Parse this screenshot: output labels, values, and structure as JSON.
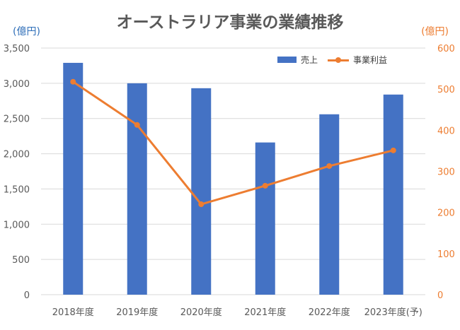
{
  "chart_data": {
    "type": "bar",
    "title": "オーストラリア事業の業績推移",
    "y_unit_left": "(億円)",
    "y_unit_right": "(億円)",
    "categories": [
      "2018年度",
      "2019年度",
      "2020年度",
      "2021年度",
      "2022年度",
      "2023年度(予)"
    ],
    "series": [
      {
        "name": "売上",
        "type": "bar",
        "axis": "left",
        "color": "#4472C4",
        "values": [
          3290,
          3000,
          2930,
          2160,
          2560,
          2840
        ]
      },
      {
        "name": "事業利益",
        "type": "line",
        "axis": "right",
        "color": "#ED7D31",
        "values": [
          518,
          413,
          220,
          265,
          313,
          351
        ]
      }
    ],
    "y_left": {
      "min": 0,
      "max": 3500,
      "step": 500,
      "ticks": [
        "0",
        "500",
        "1,000",
        "1,500",
        "2,000",
        "2,500",
        "3,000",
        "3,500"
      ]
    },
    "y_right": {
      "min": 0,
      "max": 600,
      "step": 100,
      "ticks": [
        "0",
        "100",
        "200",
        "300",
        "400",
        "500",
        "600"
      ]
    },
    "grid": true,
    "legend_position": "top-right",
    "colors": {
      "bar": "#4472C4",
      "line": "#ED7D31",
      "left_axis_unit": "#2E6EB8",
      "right_axis": "#ED7D31",
      "axis_text": "#595959",
      "grid": "#D9D9D9"
    }
  }
}
